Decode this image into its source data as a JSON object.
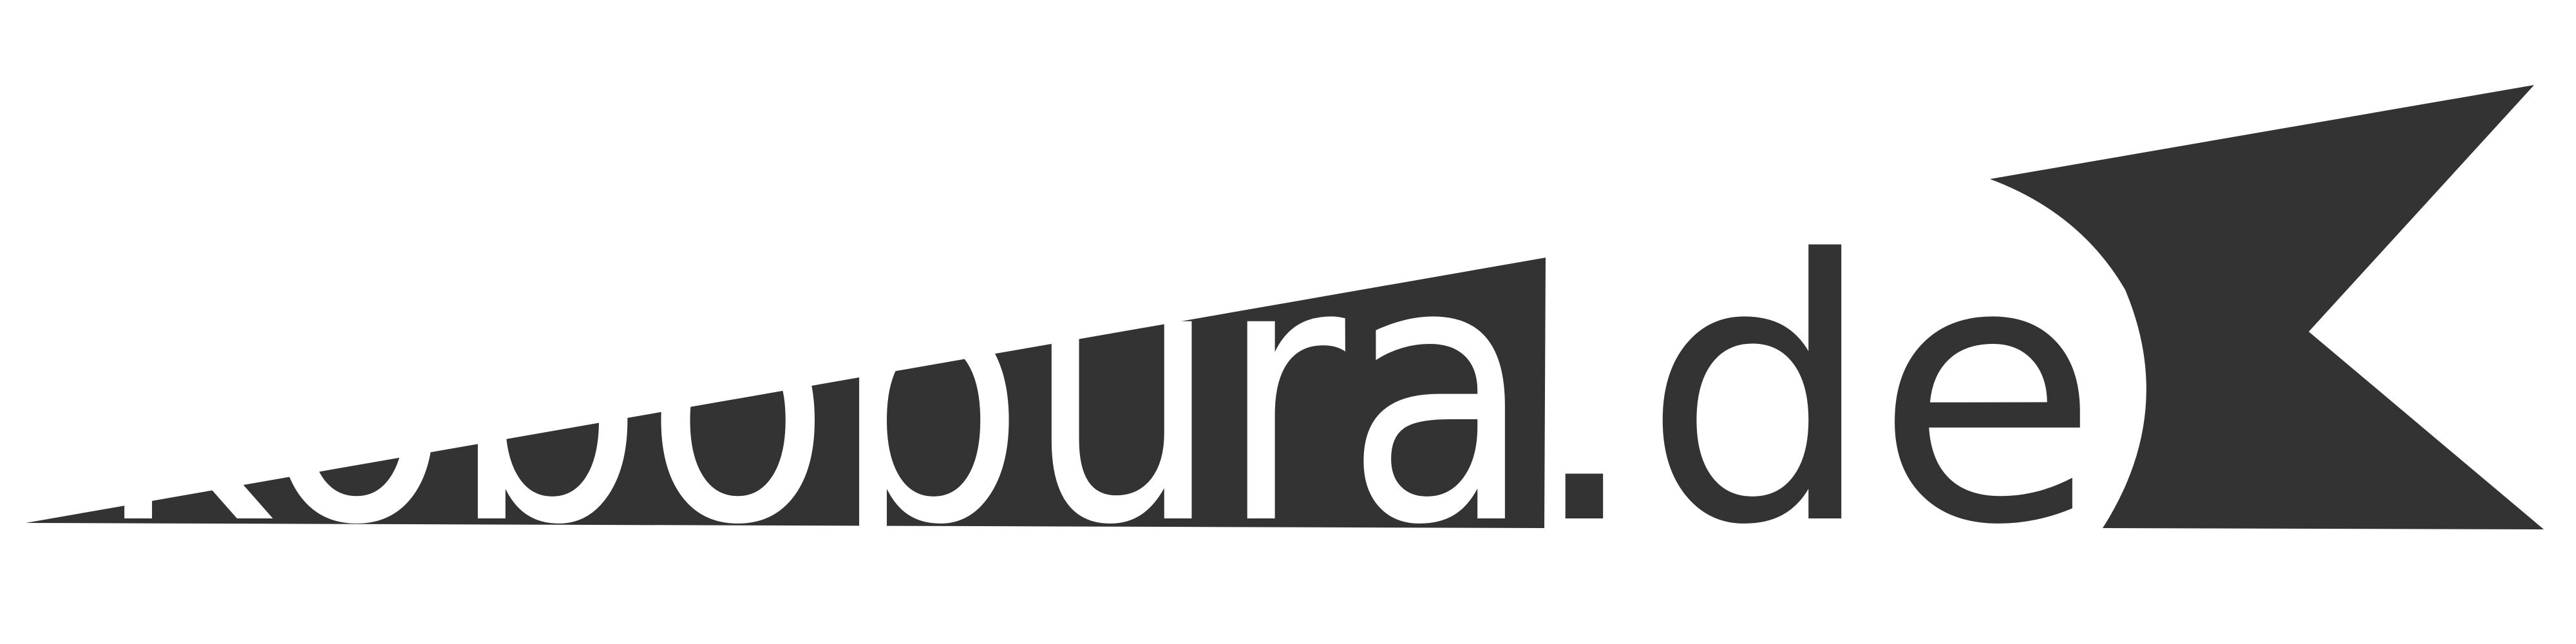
{
  "logo": {
    "name_text": "kobopura",
    "tld_text": ".de",
    "colors": {
      "dark": "#333333",
      "light": "#ffffff",
      "background": "#ffffff"
    }
  }
}
